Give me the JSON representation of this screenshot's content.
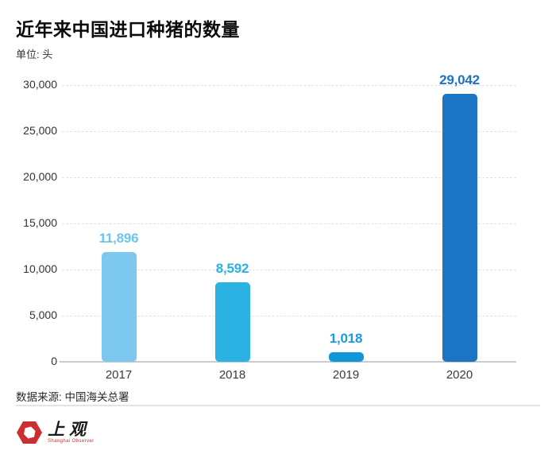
{
  "header": {
    "title": "近年来中国进口种猪的数量",
    "unit": "单位: 头"
  },
  "chart_data": {
    "type": "bar",
    "title": "近年来中国进口种猪的数量",
    "unit_label": "单位: 头",
    "categories": [
      "2017",
      "2018",
      "2019",
      "2020"
    ],
    "values": [
      11896,
      8592,
      1018,
      29042
    ],
    "value_labels": [
      "11,896",
      "8,592",
      "1,018",
      "29,042"
    ],
    "bar_colors": [
      "#7cc8ee",
      "#29b2e2",
      "#0f96d9",
      "#1b74c4"
    ],
    "label_colors": [
      "#6fc3ed",
      "#29b2e2",
      "#169de0",
      "#1a73c6"
    ],
    "ylim": [
      0,
      30000
    ],
    "ytick_interval": 5000,
    "ytick_labels": [
      "0",
      "5,000",
      "10,000",
      "15,000",
      "20,000",
      "25,000",
      "30,000"
    ],
    "grid": "horizontal-dashed",
    "legend": "none",
    "xlabel": "",
    "ylabel": ""
  },
  "footer": {
    "source": "数据来源: 中国海关总署",
    "logo_cn": "上观",
    "logo_en": "Shanghai Observer"
  },
  "colors": {
    "grid": "#e2e2e2",
    "baseline": "#cbcbcb",
    "logo_red": "#cb2f30"
  }
}
